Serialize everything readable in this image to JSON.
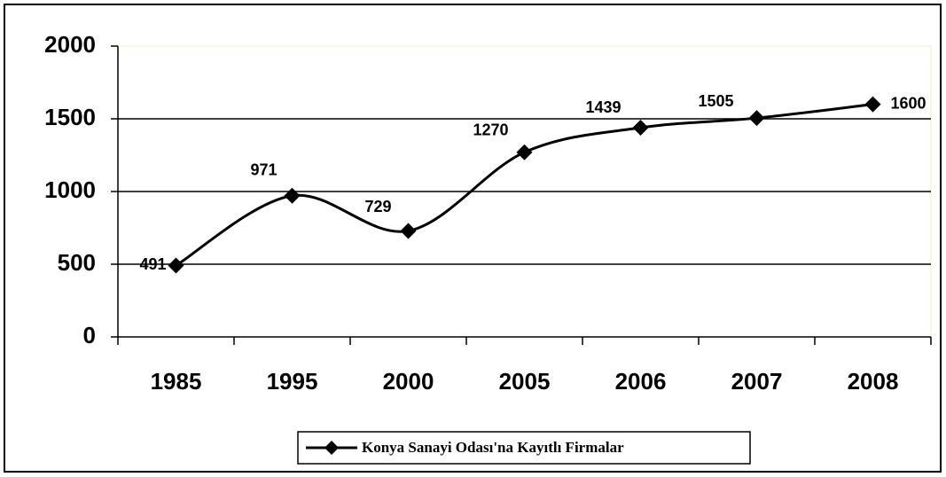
{
  "chart_data": {
    "type": "line",
    "smooth": true,
    "categories": [
      "1985",
      "1995",
      "2000",
      "2005",
      "2006",
      "2007",
      "2008"
    ],
    "series": [
      {
        "name": "Konya Sanayi Odası'na Kayıtlı Firmalar",
        "color": "#000000",
        "values": [
          491,
          971,
          729,
          1270,
          1439,
          1505,
          1600
        ]
      }
    ],
    "ylim": [
      0,
      2000
    ],
    "yticks": [
      0,
      500,
      1000,
      1500,
      2000
    ],
    "grid": true,
    "legend": "bottom"
  }
}
